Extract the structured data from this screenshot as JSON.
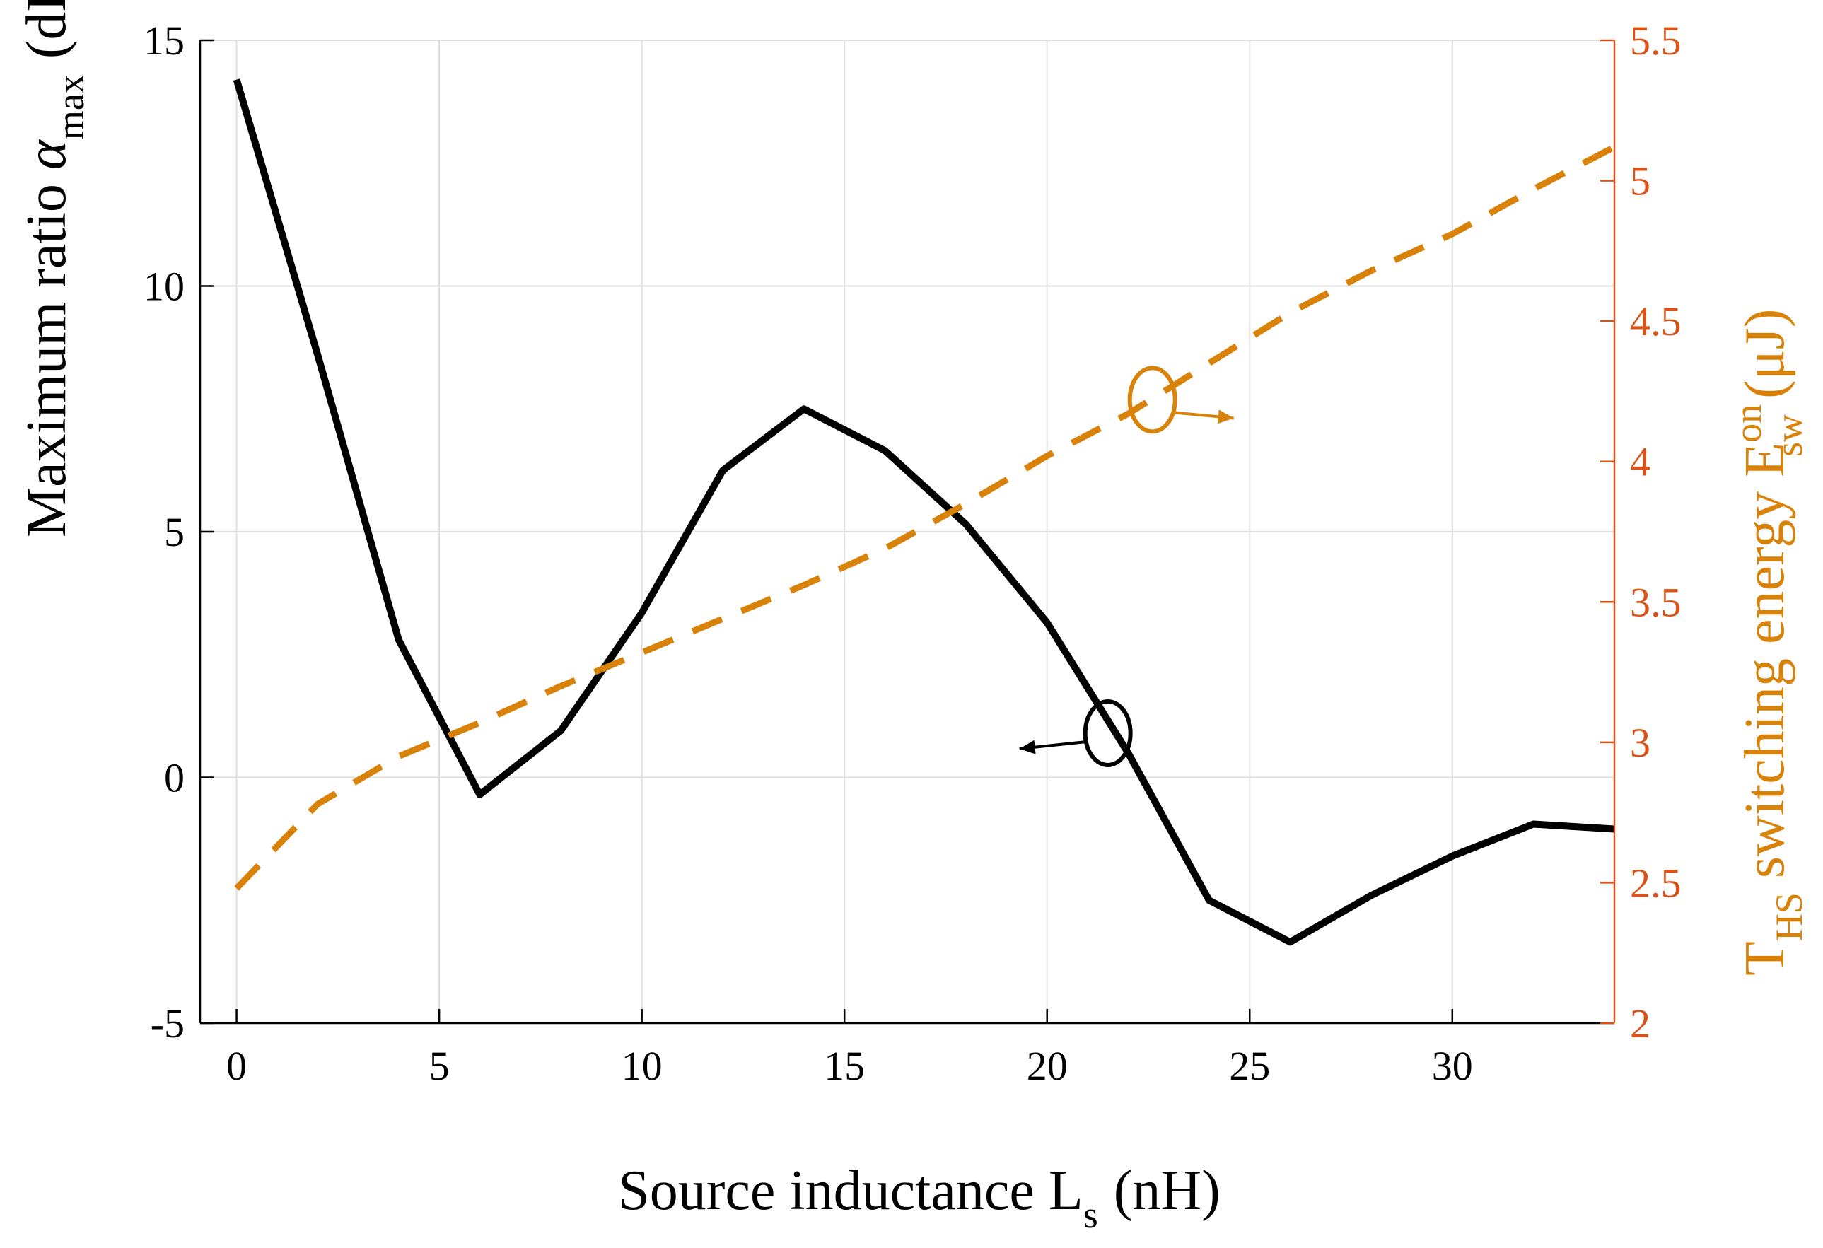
{
  "chart_data": {
    "type": "line",
    "x": [
      0,
      2,
      4,
      6,
      8,
      10,
      12,
      14,
      16,
      18,
      20,
      22,
      24,
      26,
      28,
      30,
      32,
      34
    ],
    "series": [
      {
        "name": "Maximum ratio alpha_max",
        "axis": "left",
        "style": "solid",
        "color": "#000000",
        "values": [
          14.2,
          8.6,
          2.8,
          -0.35,
          0.95,
          3.35,
          6.25,
          7.5,
          6.65,
          5.15,
          3.15,
          0.5,
          -2.5,
          -3.35,
          -2.4,
          -1.6,
          -0.95,
          -1.05
        ]
      },
      {
        "name": "T_HS switching energy E_sw^on",
        "axis": "right",
        "style": "dashed",
        "color": "#D9820A",
        "values": [
          2.48,
          2.78,
          2.95,
          3.07,
          3.2,
          3.32,
          3.44,
          3.56,
          3.69,
          3.85,
          4.02,
          4.17,
          4.35,
          4.53,
          4.68,
          4.81,
          4.97,
          5.12
        ]
      }
    ],
    "xlim": [
      -0.9,
      34
    ],
    "ylim_left": [
      -5,
      15
    ],
    "ylim_right": [
      2,
      5.5
    ],
    "x_ticks": [
      "0",
      "5",
      "10",
      "15",
      "20",
      "25",
      "30"
    ],
    "x_tick_values": [
      0,
      5,
      10,
      15,
      20,
      25,
      30
    ],
    "y_left_ticks": [
      "-5",
      "0",
      "5",
      "10",
      "15"
    ],
    "y_left_tick_values": [
      -5,
      0,
      5,
      10,
      15
    ],
    "y_right_ticks": [
      "2",
      "2.5",
      "3",
      "3.5",
      "4",
      "4.5",
      "5",
      "5.5"
    ],
    "y_right_tick_values": [
      2,
      2.5,
      3,
      3.5,
      4,
      4.5,
      5,
      5.5
    ],
    "grid": true,
    "xlabel": {
      "main": "Source inductance L",
      "sub": "s",
      "unit": "(nH)"
    },
    "ylabel_left": {
      "main": "Maximum ratio ",
      "symbol": "α",
      "sub": "max",
      "unit": "(dB)"
    },
    "ylabel_right": {
      "t": "T",
      "t_sub": "HS",
      "main": " switching energy E",
      "sup": "on",
      "sub": "sw",
      "unit": "(μJ)"
    },
    "annotations": [
      {
        "name": "left-axis-marker",
        "x": 21.5,
        "y_axis": "left",
        "y": 0.9,
        "points_to": "left"
      },
      {
        "name": "right-axis-marker",
        "x": 22.6,
        "y_axis": "right",
        "y": 4.22,
        "points_to": "right"
      }
    ],
    "colors": {
      "left_axis": "#000000",
      "right_axis": "#D95319",
      "energy_series": "#D9820A",
      "grid": "#dedede"
    }
  }
}
